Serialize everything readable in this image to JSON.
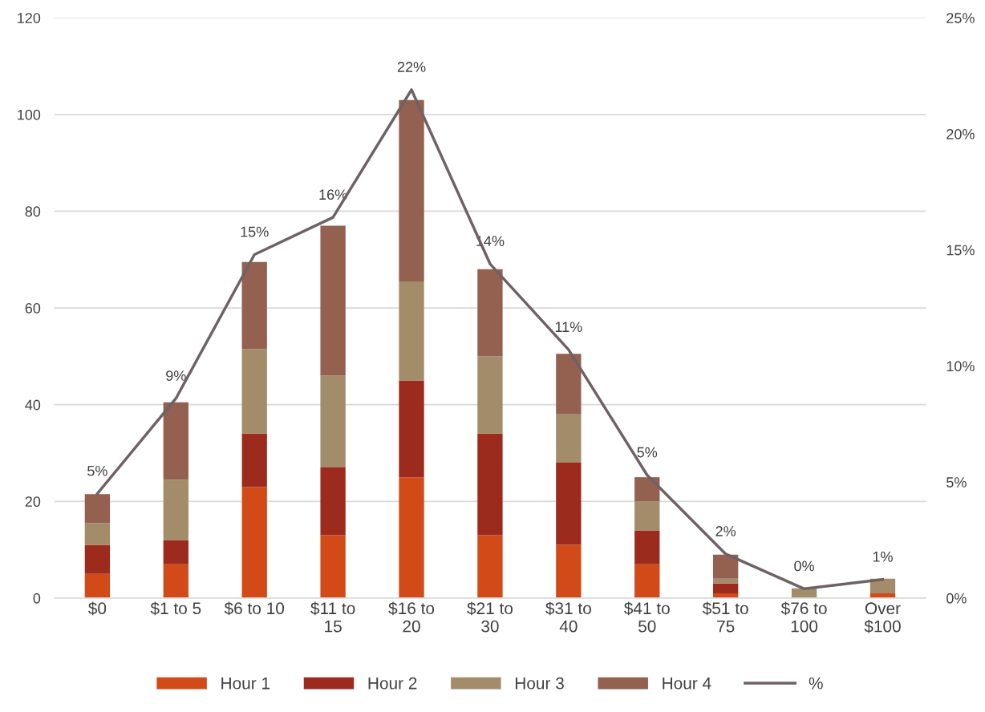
{
  "chart_data": {
    "type": "bar",
    "stacked": true,
    "categories": [
      "$0",
      "$1 to 5",
      "$6 to 10",
      "$11 to 15",
      "$16 to 20",
      "$21 to 30",
      "$31 to 40",
      "$41 to 50",
      "$51 to 75",
      "$76 to 100",
      "Over $100"
    ],
    "series": [
      {
        "name": "Hour 1",
        "color": "#d24a18",
        "values": [
          5,
          7,
          23,
          13,
          25,
          13,
          11,
          7,
          1,
          null,
          1
        ]
      },
      {
        "name": "Hour 2",
        "color": "#9c2b1e",
        "values": [
          6,
          5,
          11,
          14,
          20,
          21,
          17,
          7,
          2,
          null,
          null
        ]
      },
      {
        "name": "Hour 3",
        "color": "#a38c6a",
        "values": [
          4.5,
          12.5,
          17.5,
          19,
          20.5,
          16,
          10,
          6,
          1,
          2,
          3
        ]
      },
      {
        "name": "Hour 4",
        "color": "#946050",
        "values": [
          6,
          16,
          18,
          31,
          37.5,
          18,
          12.5,
          5,
          5,
          null,
          null
        ]
      },
      {
        "name": "%",
        "type": "line",
        "axis": "y2",
        "color": "#6e6264",
        "values": [
          4.5,
          8.6,
          14.8,
          16.4,
          21.9,
          14.4,
          10.7,
          5.3,
          1.9,
          0.4,
          0.8
        ],
        "value_labels": [
          "5%",
          "9%",
          "15%",
          "16%",
          "22%",
          "14%",
          "11%",
          "5%",
          "2%",
          "0%",
          "1%"
        ]
      }
    ],
    "ylim": [
      0,
      120
    ],
    "yticks": [
      0,
      20,
      40,
      60,
      80,
      100,
      120
    ],
    "y2lim": [
      0,
      25
    ],
    "y2ticks": [
      {
        "value": 0,
        "label": "0%"
      },
      {
        "value": 5,
        "label": "5%"
      },
      {
        "value": 10,
        "label": "10%"
      },
      {
        "value": 15,
        "label": "15%"
      },
      {
        "value": 20,
        "label": "20%"
      },
      {
        "value": 25,
        "label": "25%"
      }
    ],
    "grid": "y",
    "legend": "bottom",
    "marker": "none",
    "line_style": "solid"
  }
}
